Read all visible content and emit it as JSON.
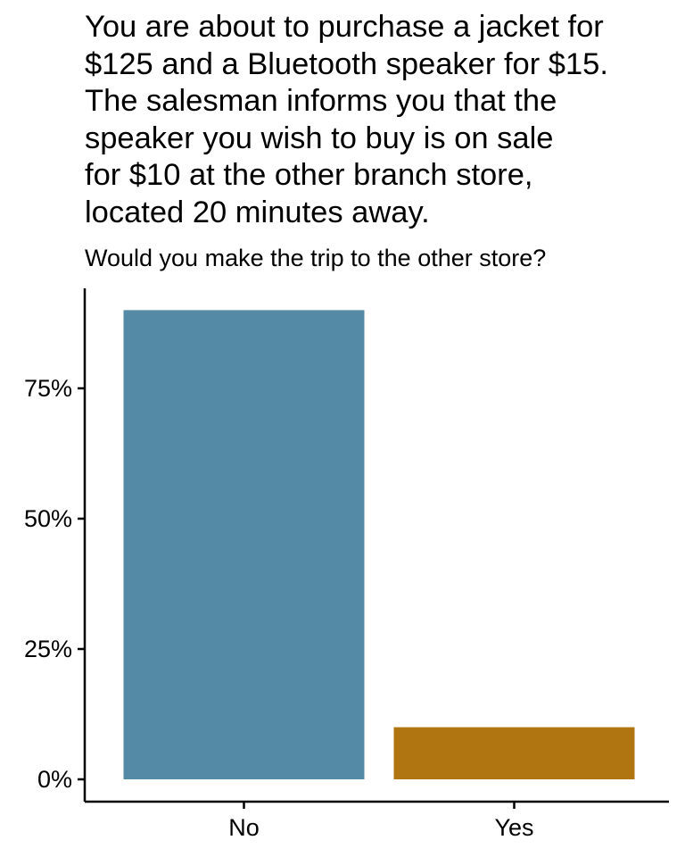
{
  "chart_data": {
    "type": "bar",
    "title": "You are about to purchase a jacket for\n$125 and a Bluetooth speaker for $15.\nThe salesman informs you that the\nspeaker you wish to buy is on sale\nfor $10 at the other branch store,\nlocated 20 minutes away.",
    "subtitle": "Would you make the trip to the other store?",
    "xlabel": "",
    "ylabel": "",
    "categories": [
      "No",
      "Yes"
    ],
    "values": [
      0.9,
      0.1
    ],
    "colors": [
      "#548aa6",
      "#b07510"
    ],
    "ylim": [
      0,
      0.9
    ],
    "yticks": [
      0,
      0.25,
      0.5,
      0.75
    ],
    "ytick_labels": [
      "0%",
      "25%",
      "50%",
      "75%"
    ],
    "grid": false,
    "legend": "none"
  }
}
